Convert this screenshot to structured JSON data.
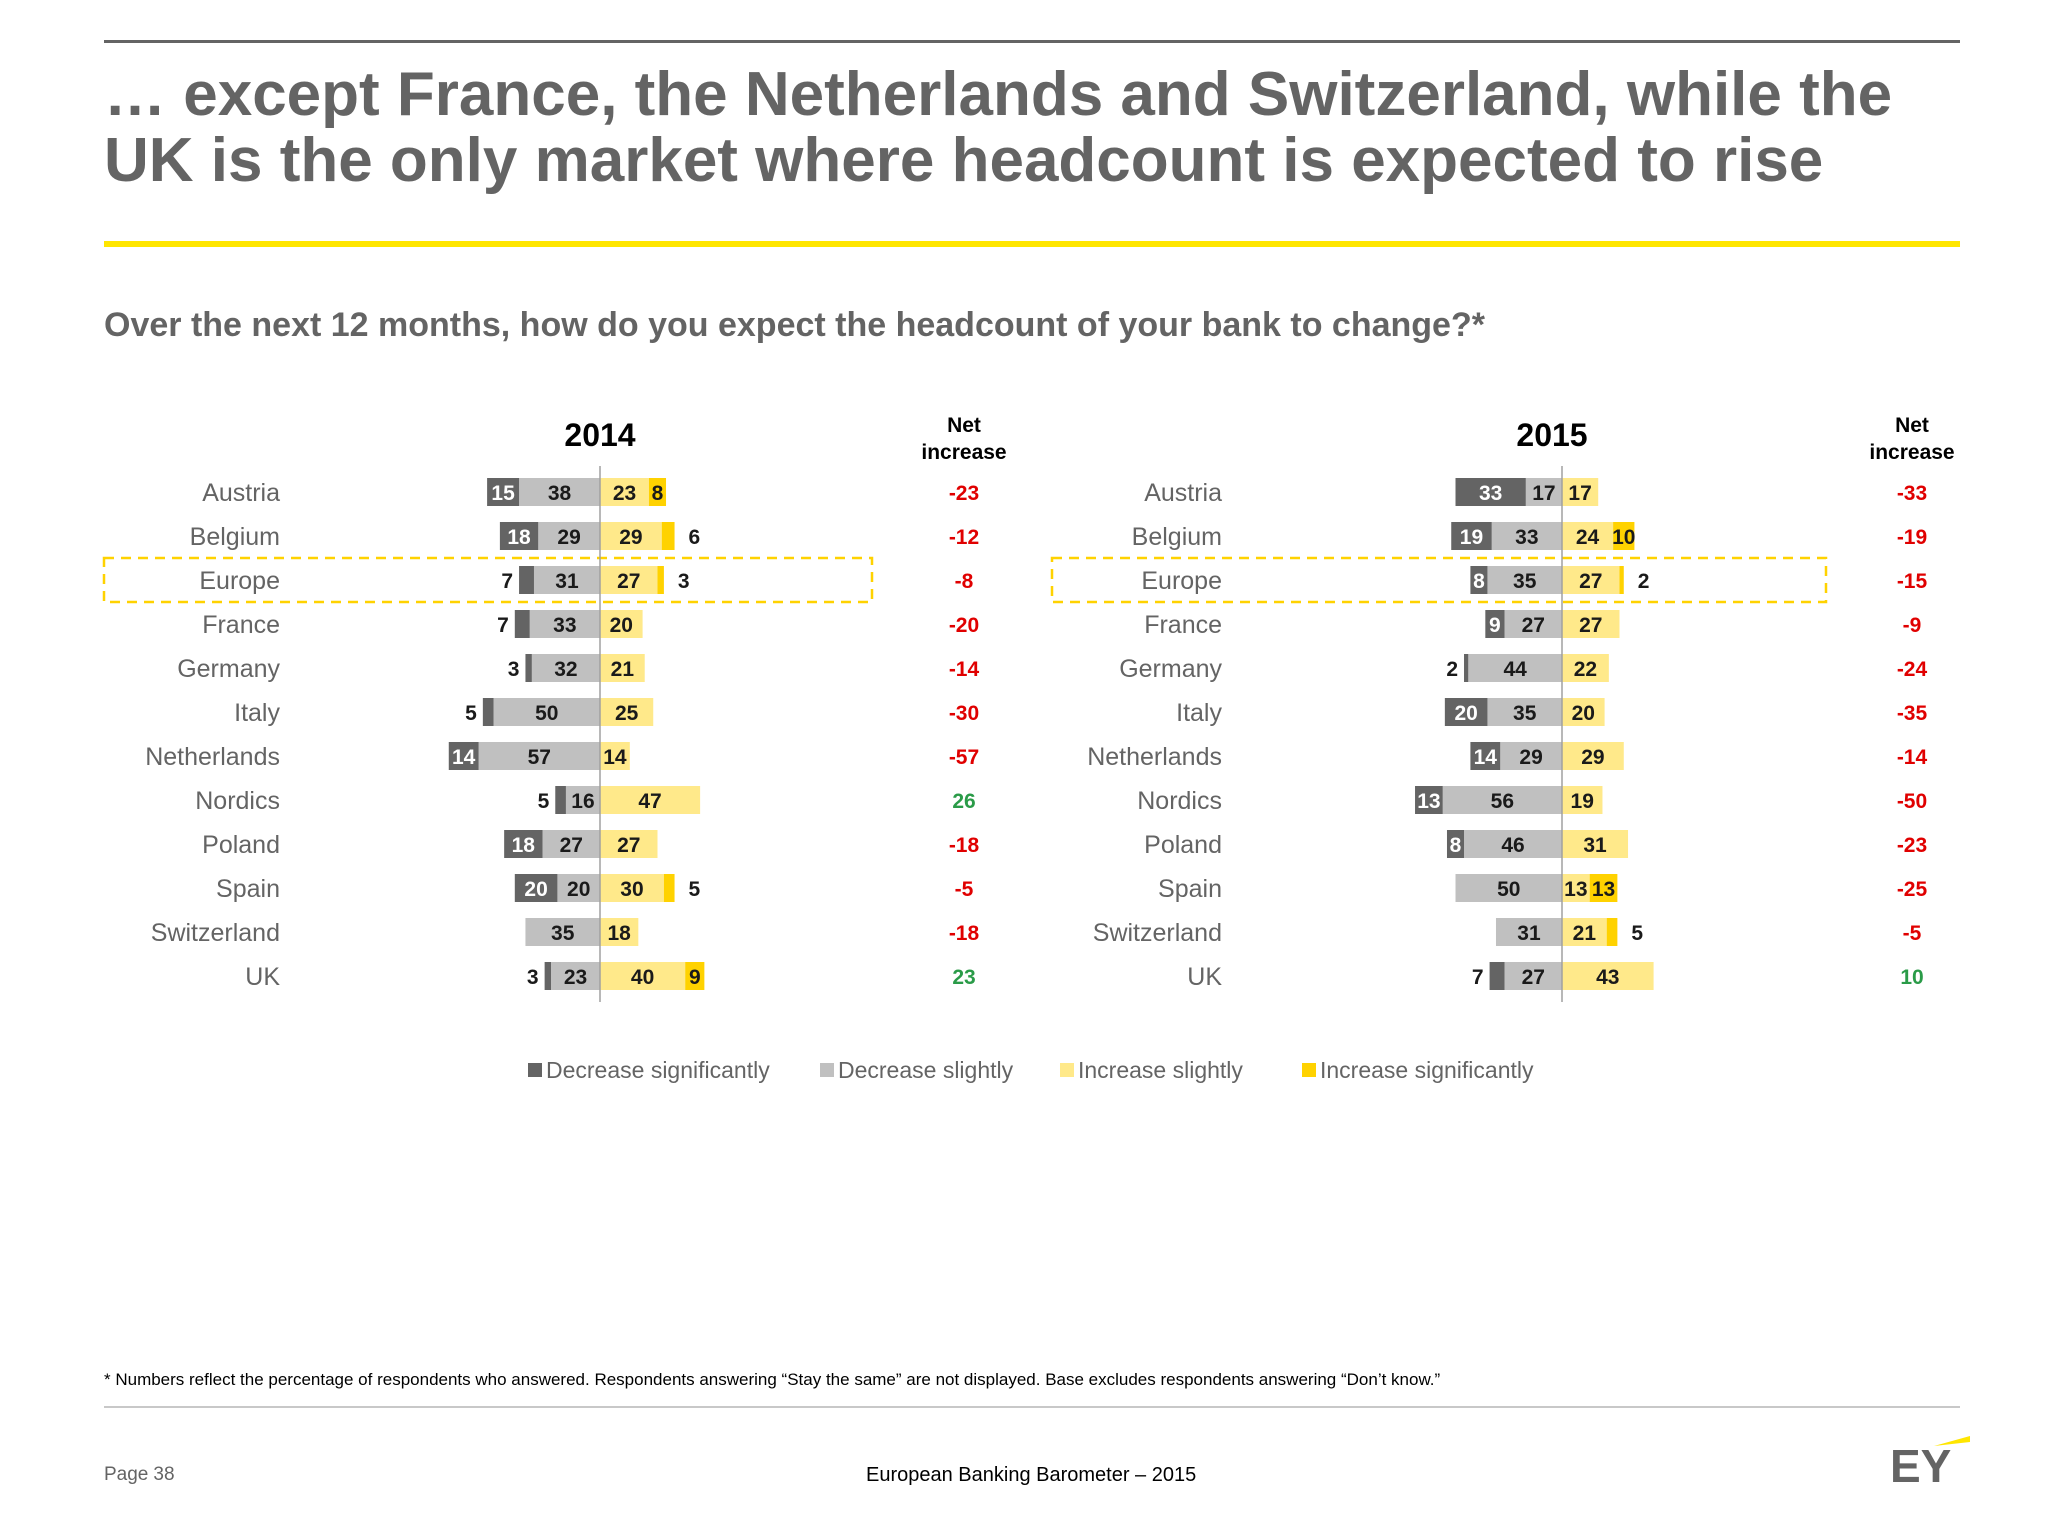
{
  "header": {
    "title": "… except France, the Netherlands and Switzerland, while the UK is the only market where headcount is expected to rise",
    "question": "Over the next 12 months, how do you expect the headcount of your bank to change?*"
  },
  "chart_data": [
    {
      "type": "bar",
      "title": "2014",
      "net_header": "Net increase",
      "highlight": "Europe",
      "categories": [
        "Austria",
        "Belgium",
        "Europe",
        "France",
        "Germany",
        "Italy",
        "Netherlands",
        "Nordics",
        "Poland",
        "Spain",
        "Switzerland",
        "UK"
      ],
      "series": [
        {
          "name": "Decrease significantly",
          "values": [
            15,
            18,
            7,
            7,
            3,
            5,
            14,
            5,
            18,
            20,
            null,
            3
          ]
        },
        {
          "name": "Decrease slightly",
          "values": [
            38,
            29,
            31,
            33,
            32,
            50,
            57,
            16,
            27,
            20,
            35,
            23
          ]
        },
        {
          "name": "Increase slightly",
          "values": [
            23,
            29,
            27,
            20,
            21,
            25,
            14,
            47,
            27,
            30,
            18,
            40
          ]
        },
        {
          "name": "Increase significantly",
          "values": [
            8,
            6,
            3,
            null,
            null,
            null,
            null,
            null,
            null,
            5,
            null,
            9
          ]
        }
      ],
      "net_increase": [
        "-23",
        "-12",
        "-8",
        "-20",
        "-14",
        "-30",
        "-57",
        "26",
        "-18",
        "-5",
        "-18",
        "23"
      ]
    },
    {
      "type": "bar",
      "title": "2015",
      "net_header": "Net increase",
      "highlight": "Europe",
      "categories": [
        "Austria",
        "Belgium",
        "Europe",
        "France",
        "Germany",
        "Italy",
        "Netherlands",
        "Nordics",
        "Poland",
        "Spain",
        "Switzerland",
        "UK"
      ],
      "series": [
        {
          "name": "Decrease significantly",
          "values": [
            33,
            19,
            8,
            9,
            2,
            20,
            14,
            13,
            8,
            null,
            null,
            7
          ]
        },
        {
          "name": "Decrease slightly",
          "values": [
            17,
            33,
            35,
            27,
            44,
            35,
            29,
            56,
            46,
            50,
            31,
            27
          ]
        },
        {
          "name": "Increase slightly",
          "values": [
            17,
            24,
            27,
            27,
            22,
            20,
            29,
            19,
            31,
            13,
            21,
            43
          ]
        },
        {
          "name": "Increase significantly",
          "values": [
            null,
            10,
            2,
            null,
            null,
            null,
            null,
            null,
            null,
            13,
            5,
            null
          ]
        }
      ],
      "net_increase": [
        "-33",
        "-19",
        "-15",
        "-9",
        "-24",
        "-35",
        "-14",
        "-50",
        "-23",
        "-25",
        "-5",
        "10"
      ]
    }
  ],
  "legend": [
    {
      "label": "Decrease significantly",
      "color": "#646464"
    },
    {
      "label": "Decrease slightly",
      "color": "#c0c0c0"
    },
    {
      "label": "Increase slightly",
      "color": "#ffe98a"
    },
    {
      "label": "Increase significantly",
      "color": "#ffd200"
    }
  ],
  "colors": {
    "positive": "#2a9b48",
    "negative": "#e00000"
  },
  "footer": {
    "footnote": "* Numbers reflect the percentage of respondents who answered. Respondents answering “Stay the same” are not displayed. Base excludes respondents answering “Don’t know.”",
    "page_label": "Page",
    "page_number": "38",
    "report_title": "European Banking Barometer – 2015",
    "logo_text": "EY"
  }
}
